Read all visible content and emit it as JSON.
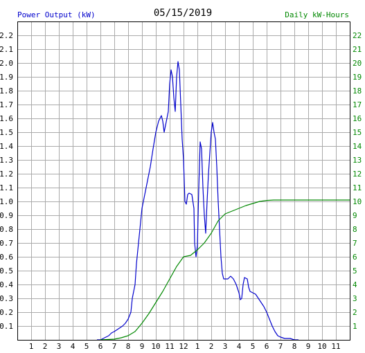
{
  "header": {
    "left_label": "Power Output (kW)",
    "date": "05/15/2019",
    "right_label": "Daily kW-Hours"
  },
  "colors": {
    "power": "#0000cc",
    "energy": "#008800",
    "grid": "#aaaaaa",
    "frame": "#000000",
    "left_axis_text": "#000000",
    "right_axis_text": "#008800"
  },
  "chart_data": {
    "type": "line",
    "title": "05/15/2019",
    "xlabel": "",
    "x_unit": "hour of day",
    "xlim": [
      0,
      24
    ],
    "x_tick_labels": [
      "1",
      "2",
      "3",
      "4",
      "5",
      "6",
      "7",
      "8",
      "9",
      "10",
      "11",
      "12",
      "1",
      "2",
      "3",
      "4",
      "5",
      "6",
      "7",
      "8",
      "9",
      "10",
      "11"
    ],
    "ylabel_left": "Power Output (kW)",
    "ylim_left": [
      0,
      2.3
    ],
    "y_ticks_left": [
      "0.1",
      "0.2",
      "0.3",
      "0.4",
      "0.5",
      "0.6",
      "0.7",
      "0.8",
      "0.9",
      "1.0",
      "1.1",
      "1.2",
      "1.3",
      "1.4",
      "1.5",
      "1.6",
      "1.7",
      "1.8",
      "1.9",
      "2.0",
      "2.1",
      "2.2"
    ],
    "ylabel_right": "Daily kW-Hours",
    "ylim_right": [
      0,
      23
    ],
    "y_ticks_right": [
      "1",
      "2",
      "3",
      "4",
      "5",
      "6",
      "7",
      "8",
      "9",
      "10",
      "11",
      "12",
      "13",
      "14",
      "15",
      "16",
      "17",
      "18",
      "19",
      "20",
      "21",
      "22"
    ],
    "grid": true,
    "series": [
      {
        "name": "Power Output (kW)",
        "axis": "left",
        "points": [
          [
            5.75,
            0.0
          ],
          [
            6.0,
            0.0
          ],
          [
            6.2,
            0.01
          ],
          [
            6.4,
            0.02
          ],
          [
            6.6,
            0.03
          ],
          [
            6.8,
            0.05
          ],
          [
            7.0,
            0.06
          ],
          [
            7.3,
            0.08
          ],
          [
            7.6,
            0.1
          ],
          [
            7.8,
            0.12
          ],
          [
            8.0,
            0.15
          ],
          [
            8.2,
            0.2
          ],
          [
            8.3,
            0.3
          ],
          [
            8.5,
            0.4
          ],
          [
            8.6,
            0.55
          ],
          [
            8.75,
            0.7
          ],
          [
            8.9,
            0.85
          ],
          [
            9.0,
            0.95
          ],
          [
            9.2,
            1.05
          ],
          [
            9.4,
            1.15
          ],
          [
            9.6,
            1.25
          ],
          [
            9.8,
            1.38
          ],
          [
            10.0,
            1.5
          ],
          [
            10.2,
            1.58
          ],
          [
            10.4,
            1.62
          ],
          [
            10.5,
            1.58
          ],
          [
            10.6,
            1.5
          ],
          [
            10.7,
            1.55
          ],
          [
            10.8,
            1.6
          ],
          [
            10.9,
            1.65
          ],
          [
            11.0,
            1.85
          ],
          [
            11.1,
            1.95
          ],
          [
            11.2,
            1.9
          ],
          [
            11.3,
            1.75
          ],
          [
            11.4,
            1.65
          ],
          [
            11.5,
            1.9
          ],
          [
            11.6,
            2.01
          ],
          [
            11.7,
            1.95
          ],
          [
            11.8,
            1.7
          ],
          [
            11.9,
            1.45
          ],
          [
            12.0,
            1.3
          ],
          [
            12.1,
            1.0
          ],
          [
            12.2,
            0.98
          ],
          [
            12.3,
            1.05
          ],
          [
            12.4,
            1.06
          ],
          [
            12.6,
            1.05
          ],
          [
            12.75,
            0.95
          ],
          [
            12.8,
            0.7
          ],
          [
            12.9,
            0.6
          ],
          [
            13.0,
            0.68
          ],
          [
            13.1,
            1.1
          ],
          [
            13.2,
            1.43
          ],
          [
            13.3,
            1.38
          ],
          [
            13.4,
            1.1
          ],
          [
            13.5,
            0.9
          ],
          [
            13.6,
            0.77
          ],
          [
            13.7,
            1.0
          ],
          [
            13.8,
            1.2
          ],
          [
            13.9,
            1.35
          ],
          [
            14.0,
            1.5
          ],
          [
            14.1,
            1.57
          ],
          [
            14.2,
            1.5
          ],
          [
            14.3,
            1.45
          ],
          [
            14.4,
            1.25
          ],
          [
            14.5,
            1.0
          ],
          [
            14.6,
            0.8
          ],
          [
            14.7,
            0.6
          ],
          [
            14.8,
            0.48
          ],
          [
            14.9,
            0.44
          ],
          [
            15.2,
            0.44
          ],
          [
            15.4,
            0.46
          ],
          [
            15.6,
            0.44
          ],
          [
            15.8,
            0.4
          ],
          [
            16.0,
            0.34
          ],
          [
            16.1,
            0.29
          ],
          [
            16.2,
            0.3
          ],
          [
            16.3,
            0.4
          ],
          [
            16.4,
            0.45
          ],
          [
            16.6,
            0.44
          ],
          [
            16.7,
            0.38
          ],
          [
            16.8,
            0.35
          ],
          [
            17.0,
            0.34
          ],
          [
            17.2,
            0.33
          ],
          [
            17.4,
            0.3
          ],
          [
            17.6,
            0.27
          ],
          [
            17.8,
            0.24
          ],
          [
            18.0,
            0.2
          ],
          [
            18.2,
            0.15
          ],
          [
            18.4,
            0.1
          ],
          [
            18.6,
            0.06
          ],
          [
            18.8,
            0.03
          ],
          [
            19.0,
            0.02
          ],
          [
            19.3,
            0.01
          ],
          [
            19.7,
            0.01
          ],
          [
            20.0,
            0.0
          ],
          [
            20.3,
            0.0
          ]
        ]
      },
      {
        "name": "Daily kW-Hours",
        "axis": "right",
        "points": [
          [
            6.0,
            0.0
          ],
          [
            7.0,
            0.05
          ],
          [
            7.5,
            0.15
          ],
          [
            8.0,
            0.3
          ],
          [
            8.5,
            0.6
          ],
          [
            9.0,
            1.2
          ],
          [
            9.5,
            1.9
          ],
          [
            10.0,
            2.7
          ],
          [
            10.5,
            3.5
          ],
          [
            11.0,
            4.4
          ],
          [
            11.5,
            5.3
          ],
          [
            12.0,
            6.0
          ],
          [
            12.5,
            6.1
          ],
          [
            13.0,
            6.5
          ],
          [
            13.5,
            7.0
          ],
          [
            14.0,
            7.7
          ],
          [
            14.5,
            8.6
          ],
          [
            15.0,
            9.1
          ],
          [
            15.5,
            9.3
          ],
          [
            16.0,
            9.5
          ],
          [
            16.5,
            9.7
          ],
          [
            17.0,
            9.85
          ],
          [
            17.5,
            10.0
          ],
          [
            18.0,
            10.07
          ],
          [
            18.5,
            10.1
          ],
          [
            19.0,
            10.1
          ],
          [
            24.0,
            10.1
          ]
        ]
      }
    ]
  }
}
